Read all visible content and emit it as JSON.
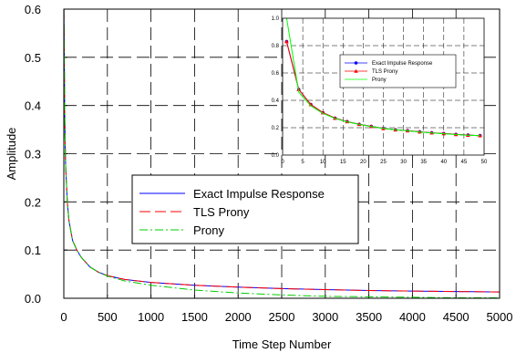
{
  "chart_data": [
    {
      "type": "line",
      "title": "",
      "xlabel": "Time Step Number",
      "ylabel": "Amplitude",
      "xlim": [
        0,
        5000
      ],
      "ylim": [
        0,
        0.6
      ],
      "x_ticks": [
        "0",
        "500",
        "1000",
        "1500",
        "2000",
        "2500",
        "3000",
        "3500",
        "4000",
        "4500",
        "5000"
      ],
      "y_ticks": [
        "0.0",
        "0.1",
        "0.2",
        "0.3",
        "0.4",
        "0.5",
        "0.6"
      ],
      "grid": true,
      "grid_style": "dashed",
      "legend_position": "center-left",
      "series": [
        {
          "name": "Exact Impulse Response",
          "color": "#0000ff",
          "style": "solid",
          "x": [
            1,
            10,
            20,
            40,
            60,
            100,
            150,
            200,
            300,
            400,
            500,
            700,
            1000,
            1500,
            2000,
            2500,
            3000,
            3500,
            4000,
            4500,
            5000
          ],
          "y": [
            0.6,
            0.38,
            0.28,
            0.2,
            0.16,
            0.12,
            0.1,
            0.085,
            0.065,
            0.054,
            0.047,
            0.039,
            0.033,
            0.027,
            0.023,
            0.02,
            0.018,
            0.016,
            0.015,
            0.014,
            0.013
          ]
        },
        {
          "name": "TLS Prony",
          "color": "#ff0000",
          "style": "dashed",
          "x": [
            1,
            10,
            20,
            40,
            60,
            100,
            150,
            200,
            300,
            400,
            500,
            700,
            1000,
            1500,
            2000,
            2500,
            3000,
            3500,
            4000,
            4500,
            5000
          ],
          "y": [
            0.6,
            0.38,
            0.28,
            0.2,
            0.16,
            0.12,
            0.1,
            0.085,
            0.065,
            0.054,
            0.047,
            0.039,
            0.033,
            0.027,
            0.023,
            0.02,
            0.018,
            0.016,
            0.015,
            0.014,
            0.013
          ]
        },
        {
          "name": "Prony",
          "color": "#00cc00",
          "style": "dashdot",
          "x": [
            1,
            10,
            20,
            40,
            60,
            100,
            150,
            200,
            300,
            400,
            500,
            700,
            1000,
            1500,
            2000,
            2500,
            3000,
            3500,
            4000,
            4500,
            5000
          ],
          "y": [
            0.6,
            0.38,
            0.28,
            0.2,
            0.16,
            0.12,
            0.1,
            0.085,
            0.065,
            0.054,
            0.046,
            0.036,
            0.027,
            0.017,
            0.011,
            0.007,
            0.004,
            0.003,
            0.002,
            0.001,
            0.001
          ]
        }
      ]
    },
    {
      "type": "line",
      "title": "",
      "xlabel": "",
      "ylabel": "",
      "xlim": [
        0,
        50
      ],
      "ylim": [
        0,
        1.0
      ],
      "x_ticks": [
        "0",
        "5",
        "10",
        "15",
        "20",
        "25",
        "30",
        "35",
        "40",
        "45",
        "50"
      ],
      "y_ticks": [
        "0.0",
        "0.2",
        "0.4",
        "0.6",
        "0.8",
        "1.0"
      ],
      "grid": true,
      "grid_style": "dashed",
      "legend_position": "top-center",
      "series": [
        {
          "name": "Exact Impulse Response",
          "color": "#0000ff",
          "marker": "circle",
          "x": [
            1,
            4,
            7,
            10,
            13,
            16,
            19,
            22,
            25,
            28,
            31,
            34,
            37,
            40,
            43,
            46,
            49
          ],
          "y": [
            0.83,
            0.48,
            0.37,
            0.31,
            0.27,
            0.245,
            0.225,
            0.21,
            0.195,
            0.185,
            0.178,
            0.17,
            0.163,
            0.157,
            0.151,
            0.146,
            0.142
          ]
        },
        {
          "name": "TLS Prony",
          "color": "#ff0000",
          "marker": "triangle",
          "x": [
            1,
            4,
            7,
            10,
            13,
            16,
            19,
            22,
            25,
            28,
            31,
            34,
            37,
            40,
            43,
            46,
            49
          ],
          "y": [
            0.83,
            0.48,
            0.37,
            0.31,
            0.27,
            0.245,
            0.225,
            0.21,
            0.195,
            0.185,
            0.178,
            0.17,
            0.163,
            0.157,
            0.151,
            0.146,
            0.142
          ]
        },
        {
          "name": "Prony",
          "color": "#00ff00",
          "marker": "none",
          "x": [
            1,
            4,
            7,
            10,
            13,
            16,
            19,
            22,
            25,
            28,
            31,
            34,
            37,
            40,
            43,
            46,
            49
          ],
          "y": [
            1.0,
            0.46,
            0.36,
            0.305,
            0.268,
            0.243,
            0.224,
            0.209,
            0.195,
            0.185,
            0.177,
            0.169,
            0.162,
            0.156,
            0.15,
            0.145,
            0.141
          ]
        }
      ]
    }
  ]
}
